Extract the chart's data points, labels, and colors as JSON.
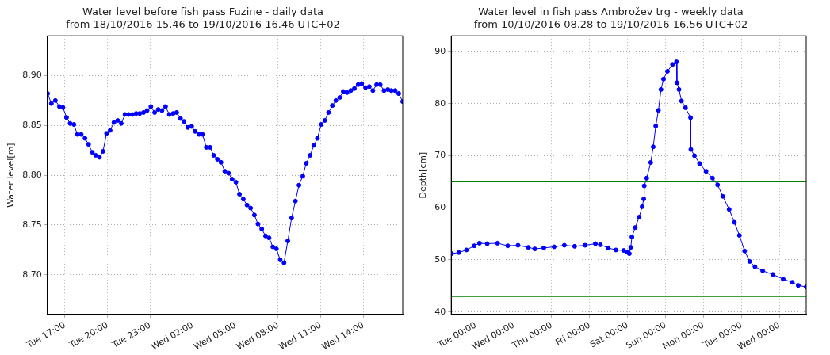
{
  "chart_data": [
    {
      "type": "line",
      "title": "Water level before fish pass Fuzine - daily data",
      "subtitle": "from 18/10/2016 15.46 to 19/10/2016 16.46 UTC+02",
      "ylabel": "Water level[m]",
      "xlim": [
        "2016-10-18T15:46",
        "2016-10-19T16:46"
      ],
      "xticks": [
        {
          "value": "2016-10-18T17:00",
          "label": "Tue 17:00"
        },
        {
          "value": "2016-10-18T20:00",
          "label": "Tue 20:00"
        },
        {
          "value": "2016-10-18T23:00",
          "label": "Tue 23:00"
        },
        {
          "value": "2016-10-19T02:00",
          "label": "Wed 02:00"
        },
        {
          "value": "2016-10-19T05:00",
          "label": "Wed 05:00"
        },
        {
          "value": "2016-10-19T08:00",
          "label": "Wed 08:00"
        },
        {
          "value": "2016-10-19T11:00",
          "label": "Wed 11:00"
        },
        {
          "value": "2016-10-19T14:00",
          "label": "Wed 14:00"
        }
      ],
      "ylim": [
        8.66,
        8.94
      ],
      "yticks": [
        {
          "value": 8.7,
          "label": "8.70"
        },
        {
          "value": 8.75,
          "label": "8.75"
        },
        {
          "value": 8.8,
          "label": "8.80"
        },
        {
          "value": 8.85,
          "label": "8.85"
        },
        {
          "value": 8.9,
          "label": "8.90"
        }
      ],
      "grid": true,
      "legend": false,
      "marker": "circle",
      "line_style": "solid",
      "series": [
        {
          "color": "#0000ff",
          "x": [
            "2016-10-18T15:47",
            "2016-10-18T16:03",
            "2016-10-18T16:20",
            "2016-10-18T16:37",
            "2016-10-18T16:52",
            "2016-10-18T17:07",
            "2016-10-18T17:22",
            "2016-10-18T17:38",
            "2016-10-18T17:53",
            "2016-10-18T18:09",
            "2016-10-18T18:25",
            "2016-10-18T18:40",
            "2016-10-18T18:56",
            "2016-10-18T19:10",
            "2016-10-18T19:26",
            "2016-10-18T19:41",
            "2016-10-18T19:56",
            "2016-10-18T20:11",
            "2016-10-18T20:27",
            "2016-10-18T20:43",
            "2016-10-18T20:58",
            "2016-10-18T21:14",
            "2016-10-18T21:29",
            "2016-10-18T21:45",
            "2016-10-18T22:01",
            "2016-10-18T22:16",
            "2016-10-18T22:32",
            "2016-10-18T22:47",
            "2016-10-18T23:03",
            "2016-10-18T23:19",
            "2016-10-18T23:34",
            "2016-10-18T23:50",
            "2016-10-19T00:05",
            "2016-10-19T00:21",
            "2016-10-19T00:37",
            "2016-10-19T00:52",
            "2016-10-19T01:08",
            "2016-10-19T01:23",
            "2016-10-19T01:39",
            "2016-10-19T01:55",
            "2016-10-19T02:10",
            "2016-10-19T02:26",
            "2016-10-19T02:41",
            "2016-10-19T02:57",
            "2016-10-19T03:13",
            "2016-10-19T03:28",
            "2016-10-19T03:44",
            "2016-10-19T03:59",
            "2016-10-19T04:15",
            "2016-10-19T04:31",
            "2016-10-19T04:46",
            "2016-10-19T05:02",
            "2016-10-19T05:17",
            "2016-10-19T05:33",
            "2016-10-19T05:49",
            "2016-10-19T06:04",
            "2016-10-19T06:20",
            "2016-10-19T06:35",
            "2016-10-19T06:51",
            "2016-10-19T07:07",
            "2016-10-19T07:22",
            "2016-10-19T07:38",
            "2016-10-19T07:53",
            "2016-10-19T08:09",
            "2016-10-19T08:25",
            "2016-10-19T08:41",
            "2016-10-19T08:57",
            "2016-10-19T09:13",
            "2016-10-19T09:28",
            "2016-10-19T09:44",
            "2016-10-19T09:59",
            "2016-10-19T10:15",
            "2016-10-19T10:31",
            "2016-10-19T10:46",
            "2016-10-19T11:02",
            "2016-10-19T11:17",
            "2016-10-19T11:33",
            "2016-10-19T11:49",
            "2016-10-19T12:04",
            "2016-10-19T12:20",
            "2016-10-19T12:35",
            "2016-10-19T12:51",
            "2016-10-19T13:07",
            "2016-10-19T13:22",
            "2016-10-19T13:38",
            "2016-10-19T13:53",
            "2016-10-19T14:09",
            "2016-10-19T14:25",
            "2016-10-19T14:40",
            "2016-10-19T14:56",
            "2016-10-19T15:11",
            "2016-10-19T15:27",
            "2016-10-19T15:43",
            "2016-10-19T15:58",
            "2016-10-19T16:14",
            "2016-10-19T16:29",
            "2016-10-19T16:46"
          ],
          "values": [
            8.882,
            8.872,
            8.875,
            8.869,
            8.868,
            8.858,
            8.852,
            8.851,
            8.841,
            8.841,
            8.837,
            8.831,
            8.823,
            8.82,
            8.818,
            8.824,
            8.842,
            8.845,
            8.853,
            8.855,
            8.852,
            8.861,
            8.861,
            8.861,
            8.862,
            8.862,
            8.863,
            8.865,
            8.869,
            8.863,
            8.866,
            8.865,
            8.869,
            8.861,
            8.862,
            8.863,
            8.857,
            8.854,
            8.848,
            8.849,
            8.844,
            8.841,
            8.841,
            8.828,
            8.828,
            8.82,
            8.816,
            8.813,
            8.804,
            8.802,
            8.796,
            8.793,
            8.781,
            8.776,
            8.77,
            8.767,
            8.76,
            8.751,
            8.746,
            8.739,
            8.737,
            8.728,
            8.726,
            8.715,
            8.712,
            8.734,
            8.757,
            8.774,
            8.79,
            8.799,
            8.812,
            8.82,
            8.83,
            8.837,
            8.851,
            8.855,
            8.863,
            8.87,
            8.875,
            8.878,
            8.884,
            8.883,
            8.885,
            8.887,
            8.891,
            8.892,
            8.888,
            8.889,
            8.885,
            8.891,
            8.891,
            8.885,
            8.886,
            8.885,
            8.885,
            8.882,
            8.874
          ]
        }
      ]
    },
    {
      "type": "line",
      "title": "Water level in fish pass Ambrožev trg - weekly data",
      "subtitle": "from 10/10/2016 08.28 to 19/10/2016 16.56 UTC+02",
      "ylabel": "Depth[cm]",
      "xlim": [
        "2016-10-10T08:28",
        "2016-10-19T16:56"
      ],
      "xticks": [
        {
          "value": "2016-10-11T00:00",
          "label": "Tue 00:00"
        },
        {
          "value": "2016-10-12T00:00",
          "label": "Wed 00:00"
        },
        {
          "value": "2016-10-13T00:00",
          "label": "Thu 00:00"
        },
        {
          "value": "2016-10-14T00:00",
          "label": "Fri 00:00"
        },
        {
          "value": "2016-10-15T00:00",
          "label": "Sat 00:00"
        },
        {
          "value": "2016-10-16T00:00",
          "label": "Sun 00:00"
        },
        {
          "value": "2016-10-17T00:00",
          "label": "Mon 00:00"
        },
        {
          "value": "2016-10-18T00:00",
          "label": "Tue 00:00"
        },
        {
          "value": "2016-10-19T00:00",
          "label": "Wed 00:00"
        }
      ],
      "ylim": [
        39.5,
        93
      ],
      "yticks": [
        40,
        50,
        60,
        70,
        80,
        90
      ],
      "grid": true,
      "legend": false,
      "marker": "circle",
      "line_style": "solid",
      "ref_lines": [
        {
          "axis": "y",
          "value": 65,
          "color": "#008000"
        },
        {
          "axis": "y",
          "value": 43,
          "color": "#008000"
        }
      ],
      "series": [
        {
          "color": "#0000ff",
          "x": [
            "2016-10-10T08:42",
            "2016-10-10T13:18",
            "2016-10-10T18:06",
            "2016-10-10T23:00",
            "2016-10-11T02:18",
            "2016-10-11T07:12",
            "2016-10-11T13:42",
            "2016-10-11T20:12",
            "2016-10-12T02:42",
            "2016-10-12T09:12",
            "2016-10-12T13:18",
            "2016-10-12T19:00",
            "2016-10-13T01:30",
            "2016-10-13T08:00",
            "2016-10-13T14:30",
            "2016-10-13T21:06",
            "2016-10-14T03:36",
            "2016-10-14T06:48",
            "2016-10-14T11:42",
            "2016-10-14T16:36",
            "2016-10-14T21:30",
            "2016-10-14T23:54",
            "2016-10-15T01:06",
            "2016-10-15T02:00",
            "2016-10-15T02:42",
            "2016-10-15T04:48",
            "2016-10-15T07:18",
            "2016-10-15T09:12",
            "2016-10-15T10:12",
            "2016-10-15T10:30",
            "2016-10-15T12:06",
            "2016-10-15T14:36",
            "2016-10-15T16:12",
            "2016-10-15T17:48",
            "2016-10-15T19:30",
            "2016-10-15T21:06",
            "2016-10-15T22:42",
            "2016-10-16T01:12",
            "2016-10-16T04:24",
            "2016-10-16T06:54",
            "2016-10-16T07:12",
            "2016-10-16T08:30",
            "2016-10-16T10:06",
            "2016-10-16T12:36",
            "2016-10-16T15:48",
            "2016-10-16T16:00",
            "2016-10-16T18:18",
            "2016-10-16T21:30",
            "2016-10-17T01:36",
            "2016-10-17T05:42",
            "2016-10-17T08:54",
            "2016-10-17T12:12",
            "2016-10-17T16:12",
            "2016-10-17T19:30",
            "2016-10-17T22:42",
            "2016-10-18T02:00",
            "2016-10-18T05:12",
            "2016-10-18T08:30",
            "2016-10-18T13:24",
            "2016-10-18T19:54",
            "2016-10-19T02:24",
            "2016-10-19T08:06",
            "2016-10-19T11:54",
            "2016-10-19T16:54"
          ],
          "values": [
            51.2,
            51.4,
            51.9,
            52.7,
            53.2,
            53.1,
            53.2,
            52.7,
            52.8,
            52.4,
            52.1,
            52.3,
            52.5,
            52.8,
            52.6,
            52.8,
            53.1,
            52.9,
            52.3,
            51.9,
            51.8,
            51.5,
            51.2,
            52.4,
            54.4,
            56.2,
            58.2,
            60.2,
            61.7,
            64.2,
            65.7,
            68.7,
            71.7,
            75.7,
            78.7,
            82.7,
            84.7,
            86.2,
            87.5,
            88.0,
            84.0,
            82.7,
            80.5,
            79.2,
            77.3,
            71.2,
            70.0,
            68.5,
            67.0,
            65.7,
            64.4,
            62.2,
            59.7,
            57.2,
            54.7,
            51.7,
            49.7,
            48.7,
            47.9,
            47.2,
            46.3,
            45.7,
            45.1,
            44.8
          ]
        }
      ]
    }
  ]
}
